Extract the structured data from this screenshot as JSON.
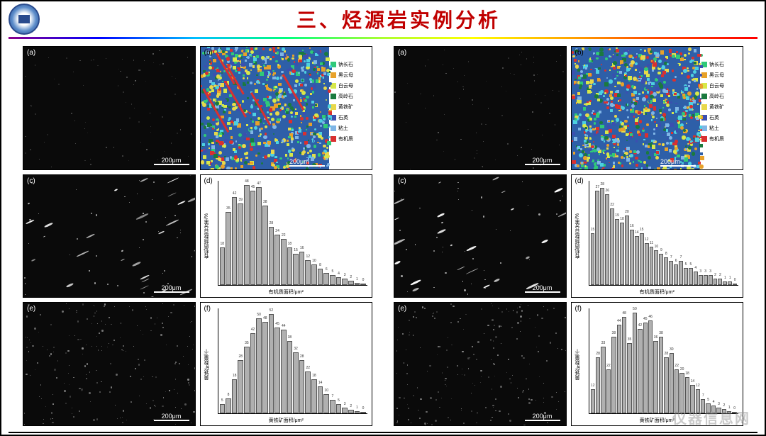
{
  "header": {
    "title": "三、烃源岩实例分析",
    "logo_text": "YANGTZE UNIVERSITY"
  },
  "scale_bar_label": "200μm",
  "watermark": "仪器信息网",
  "legend_items": [
    {
      "label": "钠长石",
      "color": "#30c979"
    },
    {
      "label": "黑云母",
      "color": "#e8a22a"
    },
    {
      "label": "白云母",
      "color": "#d7e84a"
    },
    {
      "label": "高岭石",
      "color": "#1a7a3e"
    },
    {
      "label": "黄铁矿",
      "color": "#e8d84a"
    },
    {
      "label": "石英",
      "color": "#3b4fb0"
    },
    {
      "label": "粘土",
      "color": "#7fb5e6"
    },
    {
      "label": "有机质",
      "color": "#d93030"
    }
  ],
  "left": {
    "panel_labels": [
      "(a)",
      "(b)",
      "(c)",
      "(d)",
      "(e)",
      "(f)"
    ],
    "chart_d": {
      "ylabel": "有机质频数百分率/%",
      "xlabel": "有机质面积/μm²",
      "values": [
        18,
        35,
        42,
        39,
        48,
        45,
        47,
        38,
        28,
        24,
        22,
        18,
        15,
        16,
        12,
        10,
        8,
        6,
        5,
        4,
        3,
        2,
        1,
        0
      ],
      "max": 50,
      "bar_color": "#b0b0b0"
    },
    "chart_f": {
      "ylabel": "黄铁矿数量/个",
      "xlabel": "黄铁矿面积/μm²",
      "values": [
        5,
        8,
        18,
        28,
        35,
        42,
        50,
        48,
        52,
        45,
        44,
        38,
        32,
        28,
        22,
        18,
        14,
        10,
        7,
        5,
        3,
        2,
        1,
        0
      ],
      "max": 55,
      "bar_color": "#b0b0b0"
    }
  },
  "right": {
    "panel_labels": [
      "(a)",
      "(b)",
      "(c)",
      "(d)",
      "(e)",
      "(f)"
    ],
    "chart_d": {
      "ylabel": "有机质频数百分率/%",
      "xlabel": "有机质面积/μm²",
      "values": [
        15,
        27,
        28,
        26,
        22,
        19,
        18,
        20,
        16,
        14,
        15,
        12,
        11,
        10,
        9,
        8,
        7,
        6,
        7,
        5,
        5,
        4,
        3,
        3,
        3,
        2,
        2,
        1,
        1,
        0
      ],
      "max": 30,
      "bar_color": "#b0b0b0"
    },
    "chart_f": {
      "ylabel": "黄铁矿数量/个",
      "xlabel": "黄铁矿面积/μm²",
      "values": [
        12,
        28,
        33,
        22,
        38,
        44,
        48,
        35,
        50,
        42,
        45,
        46,
        36,
        38,
        28,
        30,
        22,
        20,
        18,
        14,
        12,
        7,
        5,
        4,
        3,
        2,
        1,
        0
      ],
      "max": 52,
      "bar_color": "#b0b0b0"
    }
  },
  "mineral_palette": [
    "#2e5fa8",
    "#30c979",
    "#e8a22a",
    "#d7e84a",
    "#1a7a3e",
    "#e8d84a",
    "#3b4fb0",
    "#7fb5e6",
    "#d93030",
    "#4dd0e1"
  ],
  "style": {
    "title_color": "#c00000",
    "title_fontsize": 28,
    "border_color": "#000000",
    "background": "#ffffff"
  }
}
